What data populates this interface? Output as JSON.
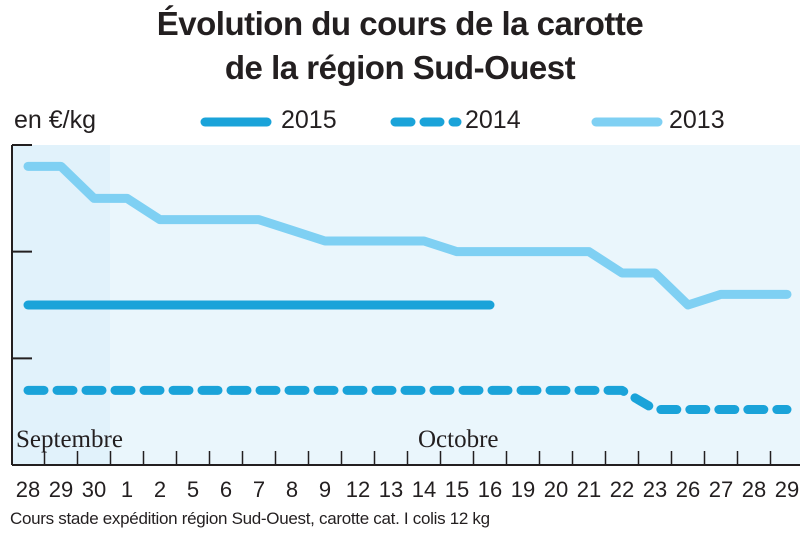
{
  "chart_data": {
    "type": "line",
    "title": "Évolution du cours de la carotte",
    "subtitle": "de la région Sud-Ouest",
    "ylabel": "en €/kg",
    "xlabel": "",
    "ylim": [
      0,
      3
    ],
    "grid": false,
    "legend_position": "top",
    "months": [
      {
        "label": "Septembre",
        "start_index": 0
      },
      {
        "label": "Octobre",
        "start_index": 12
      }
    ],
    "categories": [
      "28",
      "29",
      "30",
      "1",
      "2",
      "5",
      "6",
      "7",
      "8",
      "9",
      "12",
      "13",
      "14",
      "15",
      "16",
      "19",
      "20",
      "21",
      "22",
      "23",
      "26",
      "27",
      "28",
      "29"
    ],
    "series": [
      {
        "name": "2015",
        "style": "solid",
        "color": "#1aa3d9",
        "values": [
          1.5,
          1.5,
          1.5,
          1.5,
          1.5,
          1.5,
          1.5,
          1.5,
          1.5,
          1.5,
          1.5,
          1.5,
          1.5,
          1.5,
          1.5,
          null,
          null,
          null,
          null,
          null,
          null,
          null,
          null,
          null
        ]
      },
      {
        "name": "2014",
        "style": "dashed",
        "color": "#1aa3d9",
        "values": [
          0.7,
          0.7,
          0.7,
          0.7,
          0.7,
          0.7,
          0.7,
          0.7,
          0.7,
          0.7,
          0.7,
          0.7,
          0.7,
          0.7,
          0.7,
          0.7,
          0.7,
          0.7,
          0.7,
          0.52,
          0.52,
          0.52,
          0.52,
          0.52
        ]
      },
      {
        "name": "2013",
        "style": "solid",
        "color": "#7fd0f3",
        "values": [
          2.8,
          2.8,
          2.5,
          2.5,
          2.3,
          2.3,
          2.3,
          2.3,
          2.2,
          2.1,
          2.1,
          2.1,
          2.1,
          2.0,
          2.0,
          2.0,
          2.0,
          2.0,
          1.8,
          1.8,
          1.5,
          1.6,
          1.6,
          1.6
        ]
      }
    ]
  },
  "footnote": "Cours stade expédition région Sud-Ouest, carotte cat. I colis 12 kg",
  "colors": {
    "panel_background": "#e1f2fb",
    "panel_background_light": "#eaf6fc",
    "axis": "#231f20"
  }
}
